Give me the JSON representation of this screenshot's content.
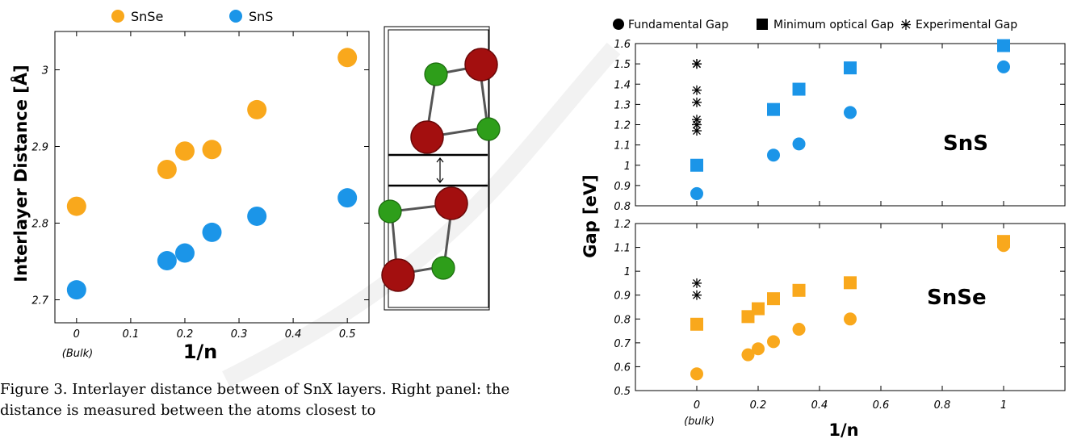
{
  "left_legend": {
    "snse": "SnSe",
    "sns": "SnS"
  },
  "right_legend": {
    "fundamental": "Fundamental Gap",
    "min_optical": "Minimum optical Gap",
    "experimental": "Experimental Gap"
  },
  "panels": {
    "sns": "SnS",
    "snse": "SnSe"
  },
  "caption": "Figure 3. Interlayer distance between of SnX layers. Right panel: the distance is measured between the atoms closest to",
  "colors": {
    "snse": "#f9a81c",
    "sns": "#1b95e8",
    "sn_atom": "#a30f0f",
    "x_atom": "#2e9e1a"
  },
  "chart_data": [
    {
      "type": "scatter",
      "xlabel": "1/n",
      "ylabel": "Interlayer Distance [Å]",
      "xlim": [
        -0.04,
        0.54
      ],
      "ylim": [
        2.67,
        3.05
      ],
      "xticks": [
        0,
        0.1,
        0.2,
        0.3,
        0.4,
        0.5
      ],
      "xtick_labels": [
        "0",
        "0.1",
        "0.2",
        "0.3",
        "0.4",
        "0.5"
      ],
      "xtick_sublabel": "(Bulk)",
      "yticks": [
        2.7,
        2.8,
        2.9,
        3.0
      ],
      "ytick_labels": [
        "2.7",
        "2.8",
        "2.9",
        "3"
      ],
      "grid": false,
      "legend": "top-left",
      "series": [
        {
          "name": "SnSe",
          "color": "#f9a81c",
          "x": [
            0,
            0.167,
            0.2,
            0.25,
            0.333,
            0.5
          ],
          "y": [
            2.822,
            2.87,
            2.894,
            2.896,
            2.948,
            3.016
          ]
        },
        {
          "name": "SnS",
          "color": "#1b95e8",
          "x": [
            0,
            0.167,
            0.2,
            0.25,
            0.333,
            0.5
          ],
          "y": [
            2.713,
            2.751,
            2.761,
            2.788,
            2.809,
            2.833
          ]
        }
      ]
    },
    {
      "type": "scatter",
      "ylabel": "Gap [eV]",
      "panel": "SnS",
      "xlim": [
        -0.2,
        1.2
      ],
      "ylim": [
        0.8,
        1.6
      ],
      "yticks": [
        0.8,
        0.9,
        1.0,
        1.1,
        1.2,
        1.3,
        1.4,
        1.5,
        1.6
      ],
      "ytick_labels": [
        "0.8",
        "0.9",
        "1",
        "1.1",
        "1.2",
        "1.3",
        "1.4",
        "1.5",
        "1.6"
      ],
      "grid": false,
      "legend": "top",
      "series": [
        {
          "name": "Fundamental Gap",
          "marker": "circle",
          "color": "#1b95e8",
          "x": [
            0,
            0.25,
            0.333,
            0.5,
            1
          ],
          "y": [
            0.86,
            1.05,
            1.105,
            1.26,
            1.485
          ]
        },
        {
          "name": "Minimum optical Gap",
          "marker": "square",
          "color": "#1b95e8",
          "x": [
            0,
            0.25,
            0.333,
            0.5,
            1
          ],
          "y": [
            1.0,
            1.275,
            1.375,
            1.48,
            1.59
          ]
        },
        {
          "name": "Experimental Gap",
          "marker": "asterisk",
          "color": "#000000",
          "x": [
            0,
            0,
            0,
            0,
            0,
            0,
            0
          ],
          "y": [
            1.5,
            1.37,
            1.31,
            1.225,
            1.2,
            1.17,
            1.5
          ]
        }
      ]
    },
    {
      "type": "scatter",
      "ylabel": "Gap [eV]",
      "xlabel": "1/n",
      "panel": "SnSe",
      "xlim": [
        -0.2,
        1.2
      ],
      "ylim": [
        0.5,
        1.2
      ],
      "xticks": [
        0,
        0.2,
        0.4,
        0.6,
        0.8,
        1
      ],
      "xtick_labels": [
        "0",
        "0.2",
        "0.4",
        "0.6",
        "0.8",
        "1"
      ],
      "xtick_sublabel": "(bulk)",
      "yticks": [
        0.5,
        0.6,
        0.7,
        0.8,
        0.9,
        1.0,
        1.1,
        1.2
      ],
      "ytick_labels": [
        "0.5",
        "0.6",
        "0.7",
        "0.8",
        "0.9",
        "1",
        "1.1",
        "1.2"
      ],
      "grid": false,
      "series": [
        {
          "name": "Fundamental Gap",
          "marker": "circle",
          "color": "#f9a81c",
          "x": [
            0,
            0.167,
            0.2,
            0.25,
            0.333,
            0.5,
            1
          ],
          "y": [
            0.57,
            0.65,
            0.675,
            0.705,
            0.757,
            0.8,
            1.108
          ]
        },
        {
          "name": "Minimum optical Gap",
          "marker": "square",
          "color": "#f9a81c",
          "x": [
            0,
            0.167,
            0.2,
            0.25,
            0.333,
            0.5,
            1
          ],
          "y": [
            0.778,
            0.81,
            0.843,
            0.885,
            0.92,
            0.952,
            1.125
          ]
        },
        {
          "name": "Experimental Gap",
          "marker": "asterisk",
          "color": "#000000",
          "x": [
            0,
            0
          ],
          "y": [
            0.95,
            0.9
          ]
        }
      ]
    }
  ]
}
